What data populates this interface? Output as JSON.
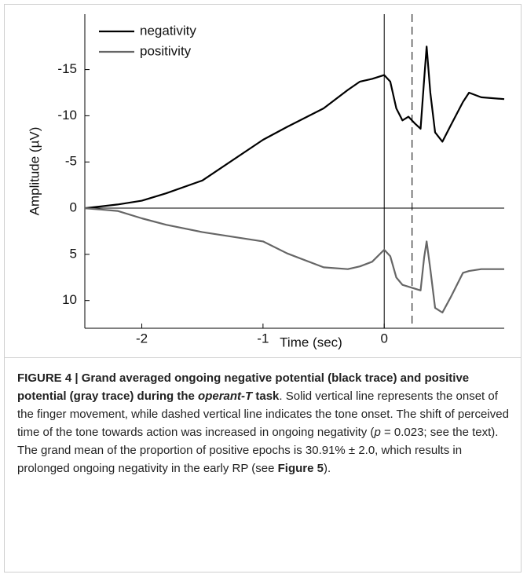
{
  "chart_data": {
    "type": "line",
    "xlabel": "Time (sec)",
    "ylabel": "Amplitude (µV)",
    "x": [
      -2.47,
      -2.2,
      -2.0,
      -1.8,
      -1.5,
      -1.0,
      -0.8,
      -0.5,
      -0.3,
      -0.2,
      -0.1,
      0,
      0.05,
      0.1,
      0.15,
      0.2,
      0.25,
      0.3,
      0.33,
      0.35,
      0.38,
      0.42,
      0.48,
      0.55,
      0.65,
      0.7,
      0.8,
      0.99
    ],
    "series": [
      {
        "name": "negativity",
        "color": "#000000",
        "values": [
          0,
          -0.4,
          -0.8,
          -1.6,
          -3,
          -7.4,
          -8.8,
          -10.8,
          -12.8,
          -13.7,
          -14,
          -14.4,
          -13.7,
          -10.8,
          -9.5,
          -9.9,
          -9.2,
          -8.6,
          -14,
          -17.5,
          -12.5,
          -8.2,
          -7.2,
          -9,
          -11.5,
          -12.5,
          -12,
          -11.8
        ]
      },
      {
        "name": "positivity",
        "color": "#666666",
        "values": [
          0,
          0.3,
          1.1,
          1.8,
          2.6,
          3.6,
          4.9,
          6.4,
          6.6,
          6.3,
          5.8,
          4.5,
          5.2,
          7.5,
          8.3,
          8.5,
          8.7,
          8.9,
          5.3,
          3.6,
          6.6,
          10.8,
          11.3,
          9.6,
          7,
          6.8,
          6.6,
          6.6
        ]
      }
    ],
    "xlim": [
      -2.47,
      0.99
    ],
    "xticks": [
      -2,
      -1,
      0
    ],
    "ylim": [
      13,
      -21
    ],
    "yticks": [
      -15,
      -10,
      -5,
      0,
      5,
      10
    ],
    "hline": 0,
    "markers": [
      {
        "x": 0,
        "style": "solid"
      },
      {
        "x": 0.23,
        "style": "dashed"
      }
    ],
    "legend": "upper left"
  },
  "caption": [
    "FIGURE 4 | Grand averaged ongoing negative potential (black trace) and positive potential (gray trace) during the ",
    "operant-T",
    " task",
    ". Solid vertical line represents the onset of the finger movement, while dashed vertical line indicates the tone onset. The shift of perceived time of the tone towards action was increased in ongoing negativity (",
    "p",
    " = 0.023; see the text). The grand mean of the proportion of positive epochs is 30.91% ± 2.0, which results in prolonged ongoing negativity in the early RP (see ",
    "Figure 5",
    ")."
  ]
}
